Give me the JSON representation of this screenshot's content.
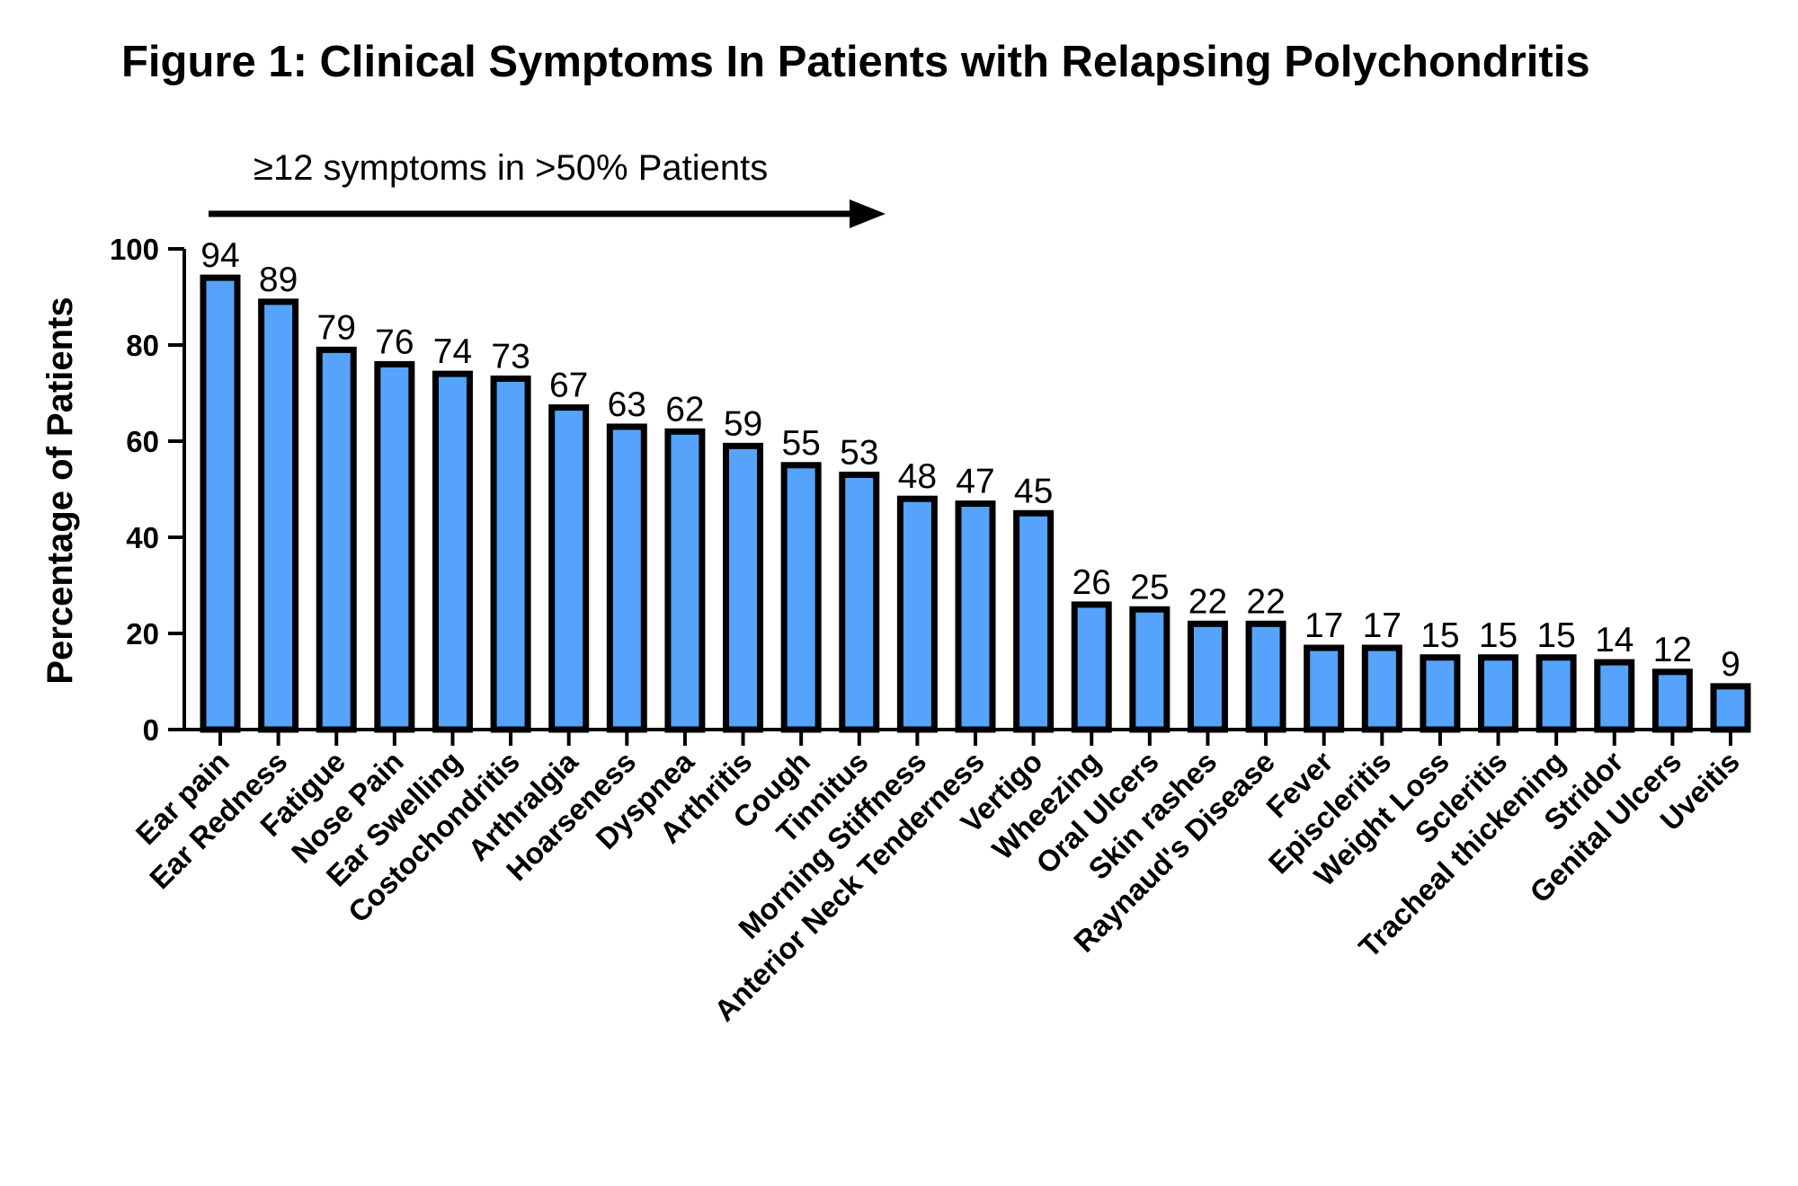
{
  "chart_data": {
    "type": "bar",
    "title": "Figure 1: Clinical Symptoms In Patients with  Relapsing Polychondritis",
    "annotation": "≥12 symptoms in >50% Patients",
    "xlabel": "",
    "ylabel": "Percentage of Patients",
    "ylim": [
      0,
      100
    ],
    "yticks": [
      0,
      20,
      40,
      60,
      80,
      100
    ],
    "bar_color": "#55a3fb",
    "categories": [
      "Ear pain",
      "Ear Redness",
      "Fatigue",
      "Nose Pain",
      "Ear Swelling",
      "Costochondritis",
      "Arthralgia",
      "Hoarseness",
      "Dyspnea",
      "Arthritis",
      "Cough",
      "Tinnitus",
      "Morning Stiffness",
      "Anterior Neck Tenderness",
      "Vertigo",
      "Wheezing",
      "Oral Ulcers",
      "Skin rashes",
      "Raynaud's Disease",
      "Fever",
      "Episcleritis",
      "Weight Loss",
      "Scleritis",
      "Tracheal thickening",
      "Stridor",
      "Genital Ulcers",
      "Uveitis"
    ],
    "values": [
      94,
      89,
      79,
      76,
      74,
      73,
      67,
      63,
      62,
      59,
      55,
      53,
      48,
      47,
      45,
      26,
      25,
      22,
      22,
      17,
      17,
      15,
      15,
      15,
      14,
      12,
      9
    ]
  }
}
